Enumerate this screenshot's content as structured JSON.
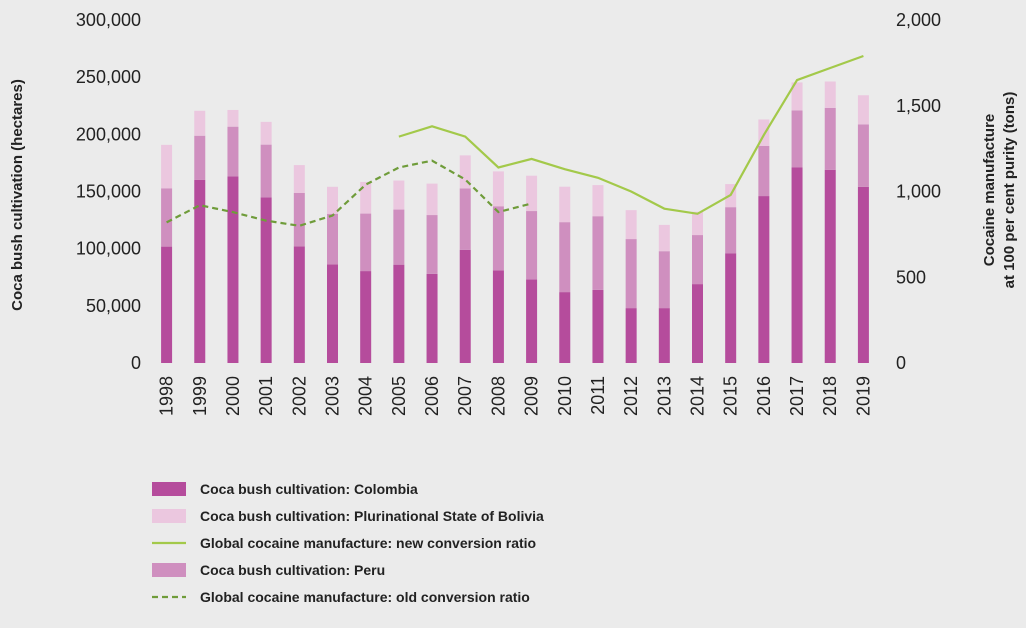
{
  "chart_data": {
    "type": "bar",
    "categories": [
      "1998",
      "1999",
      "2000",
      "2001",
      "2002",
      "2003",
      "2004",
      "2005",
      "2006",
      "2007",
      "2008",
      "2009",
      "2010",
      "2011",
      "2012",
      "2013",
      "2014",
      "2015",
      "2016",
      "2017",
      "2018",
      "2019"
    ],
    "ylabel": "Coca bush cultivation (hectares)",
    "y2label_line1": "Cocaine manufacture",
    "y2label_line2": "at 100 per cent purity (tons)",
    "ylim": [
      0,
      300000
    ],
    "y2lim": [
      0,
      2000
    ],
    "yticks": [
      0,
      50000,
      100000,
      150000,
      200000,
      250000,
      300000
    ],
    "ytick_labels": [
      "0",
      "50,000",
      "100,000",
      "150,000",
      "200,000",
      "250,000",
      "300,000"
    ],
    "y2ticks": [
      0,
      500,
      1000,
      1500,
      2000
    ],
    "y2tick_labels": [
      "0",
      "500",
      "1,000",
      "1,500",
      "2,000"
    ],
    "stacked": true,
    "series": [
      {
        "name": "Coca bush cultivation: Colombia",
        "kind": "bar",
        "axis": "left",
        "color": "#b54c9c",
        "values": [
          101800,
          160100,
          163300,
          144800,
          102000,
          86300,
          80400,
          86000,
          78000,
          99000,
          81000,
          73000,
          62000,
          64000,
          48000,
          48000,
          69000,
          96000,
          146000,
          171000,
          169000,
          154000
        ]
      },
      {
        "name": "Coca bush cultivation: Peru",
        "kind": "bar",
        "axis": "left",
        "color": "#cf8fbf",
        "values": [
          51000,
          38700,
          43400,
          46200,
          46700,
          44200,
          50300,
          48200,
          51400,
          53700,
          56100,
          59900,
          61200,
          64400,
          60400,
          49800,
          42900,
          40300,
          43900,
          49900,
          54100,
          54700
        ]
      },
      {
        "name": "Coca bush cultivation: Plurinational State of Bolivia",
        "kind": "bar",
        "axis": "left",
        "color": "#ebc7df",
        "values": [
          38000,
          21800,
          14600,
          19900,
          24400,
          23600,
          27700,
          25400,
          27500,
          28900,
          30500,
          30900,
          31000,
          27200,
          25300,
          23000,
          20400,
          20200,
          23100,
          24500,
          23100,
          25500
        ]
      },
      {
        "name": "Global cocaine manufacture: new conversion ratio",
        "kind": "line",
        "axis": "right",
        "color": "#a3c94a",
        "dash": "solid",
        "x": [
          "2005",
          "2006",
          "2007",
          "2008",
          "2009",
          "2010",
          "2011",
          "2012",
          "2013",
          "2014",
          "2015",
          "2016",
          "2017",
          "2018",
          "2019"
        ],
        "values": [
          1320,
          1380,
          1320,
          1140,
          1190,
          1130,
          1080,
          1000,
          900,
          870,
          980,
          1330,
          1650,
          1720,
          1790
        ]
      },
      {
        "name": "Global cocaine manufacture: old conversion ratio",
        "kind": "line",
        "axis": "right",
        "color": "#6f9c3a",
        "dash": "dashed",
        "x": [
          "1998",
          "1999",
          "2000",
          "2001",
          "2002",
          "2003",
          "2004",
          "2005",
          "2006",
          "2007",
          "2008",
          "2009"
        ],
        "values": [
          820,
          920,
          880,
          830,
          800,
          860,
          1040,
          1140,
          1180,
          1070,
          880,
          930
        ]
      }
    ],
    "legend": {
      "placement": "bottom",
      "order": [
        "Coca bush cultivation: Colombia",
        "Coca bush cultivation: Plurinational State of Bolivia",
        "Global cocaine manufacture: new conversion ratio",
        "Coca bush cultivation: Peru",
        "Global cocaine manufacture: old conversion ratio"
      ]
    }
  }
}
